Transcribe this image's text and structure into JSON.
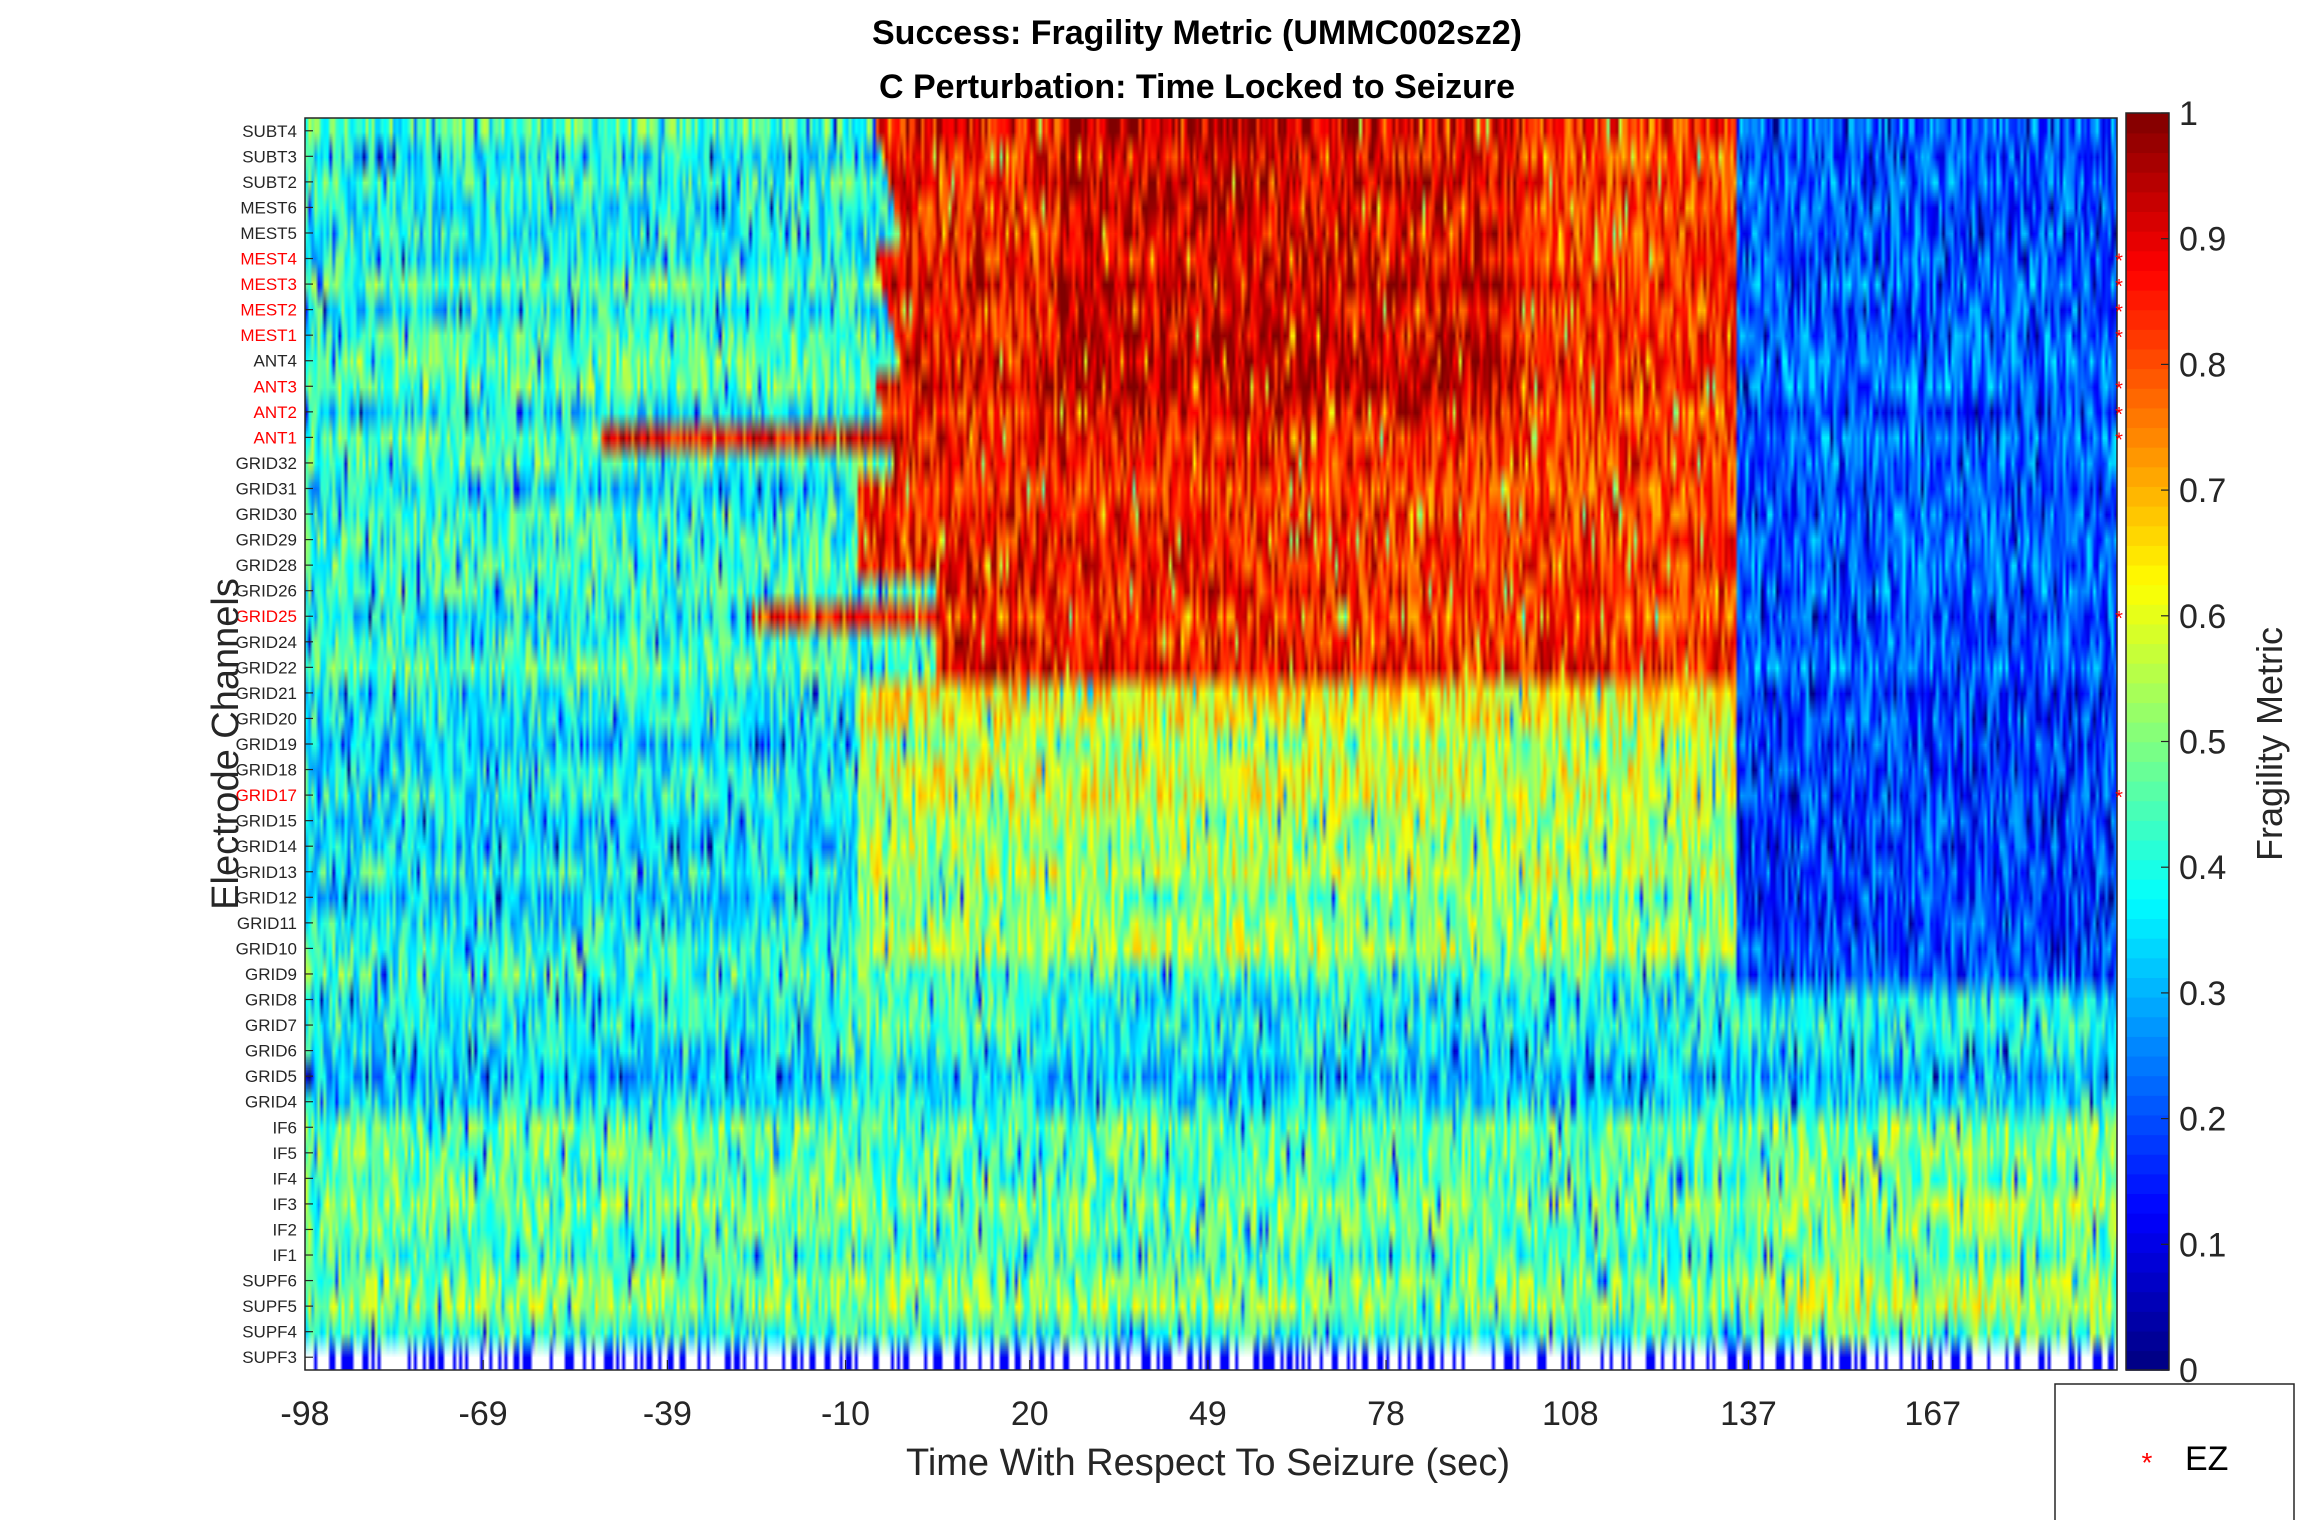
{
  "chart_data": {
    "type": "heatmap",
    "title_line1": "Success: Fragility Metric (UMMC002sz2)",
    "title_line2": "C Perturbation:  Time Locked to Seizure",
    "xlabel": "Time With Respect To Seizure (sec)",
    "ylabel": "Electrode Channels",
    "colorbar_label": "Fragility Metric",
    "colormap": "jet",
    "clim": [
      0,
      1
    ],
    "colorbar_ticks": [
      "0",
      "0.1",
      "0.2",
      "0.3",
      "0.4",
      "0.5",
      "0.6",
      "0.7",
      "0.8",
      "0.9",
      "1"
    ],
    "x_range": [
      -98,
      197
    ],
    "x_ticks": [
      -98,
      -69,
      -39,
      -10,
      20,
      49,
      78,
      108,
      137,
      167
    ],
    "x_tick_labels": [
      "-98",
      "-69",
      "-39",
      "-10",
      "20",
      "49",
      "78",
      "108",
      "137",
      "167"
    ],
    "seizure_offset_sec": 135,
    "channels": [
      "SUBT4",
      "SUBT3",
      "SUBT2",
      "MEST6",
      "MEST5",
      "MEST4",
      "MEST3",
      "MEST2",
      "MEST1",
      "ANT4",
      "ANT3",
      "ANT2",
      "ANT1",
      "GRID32",
      "GRID31",
      "GRID30",
      "GRID29",
      "GRID28",
      "GRID26",
      "GRID25",
      "GRID24",
      "GRID22",
      "GRID21",
      "GRID20",
      "GRID19",
      "GRID18",
      "GRID17",
      "GRID15",
      "GRID14",
      "GRID13",
      "GRID12",
      "GRID11",
      "GRID10",
      "GRID9",
      "GRID8",
      "GRID7",
      "GRID6",
      "GRID5",
      "GRID4",
      "IF6",
      "IF5",
      "IF4",
      "IF3",
      "IF2",
      "IF1",
      "SUPF6",
      "SUPF5",
      "SUPF4",
      "SUPF3"
    ],
    "ez_channels": [
      "MEST4",
      "MEST3",
      "MEST2",
      "MEST1",
      "ANT3",
      "ANT2",
      "ANT1",
      "GRID25",
      "GRID17"
    ],
    "ez_color": "#ff0000",
    "legend": {
      "marker": "*",
      "label": "EZ",
      "location": "bottom-right"
    },
    "approx_channel_means": {
      "pre_onset_baseline": 0.42,
      "early_ictal_high_group": 0.88,
      "post_offset": 0.22
    }
  }
}
